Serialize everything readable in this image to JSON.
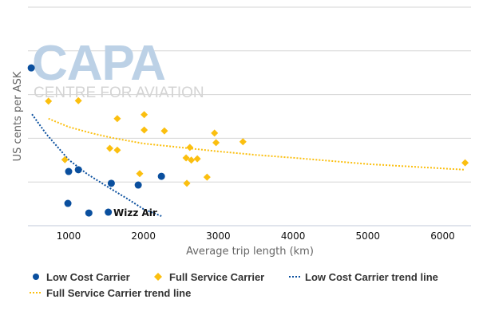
{
  "watermark": {
    "logo": "CAPA",
    "subtitle": "CENTRE FOR AVIATION"
  },
  "chart_data": {
    "type": "scatter",
    "xlabel": "Average trip length (km)",
    "ylabel": "US cents per ASK",
    "xlim": [
      500,
      6300
    ],
    "xticks": [
      "1000",
      "2000",
      "3000",
      "4000",
      "5000",
      "6000"
    ],
    "ylim": [
      0,
      5
    ],
    "yticks_shown": false,
    "grid": true,
    "legend_position": "bottom",
    "colors": {
      "lcc": "#0a4f9e",
      "fsc": "#fbbf0f",
      "grid": "#d6d6d6"
    },
    "series": [
      {
        "name": "Low Cost Carrier",
        "marker": "circle",
        "color": "#0a4f9e",
        "points": [
          [
            500,
            3.61
          ],
          [
            1000,
            1.24
          ],
          [
            1130,
            1.28
          ],
          [
            990,
            0.51
          ],
          [
            1270,
            0.29
          ],
          [
            1530,
            0.31
          ],
          [
            1570,
            0.97
          ],
          [
            1930,
            0.93
          ],
          [
            2240,
            1.13
          ]
        ]
      },
      {
        "name": "Full Service Carrier",
        "marker": "diamond",
        "color": "#fbbf0f",
        "points": [
          [
            730,
            2.85
          ],
          [
            1130,
            2.86
          ],
          [
            950,
            1.51
          ],
          [
            1650,
            2.45
          ],
          [
            1550,
            1.77
          ],
          [
            1650,
            1.73
          ],
          [
            2010,
            2.54
          ],
          [
            2010,
            2.19
          ],
          [
            2280,
            2.17
          ],
          [
            1950,
            1.19
          ],
          [
            2950,
            2.12
          ],
          [
            2970,
            1.9
          ],
          [
            3330,
            1.92
          ],
          [
            2620,
            1.79
          ],
          [
            2570,
            1.55
          ],
          [
            2640,
            1.5
          ],
          [
            2720,
            1.53
          ],
          [
            2580,
            0.97
          ],
          [
            2850,
            1.11
          ],
          [
            6300,
            1.44
          ]
        ]
      },
      {
        "name": "Low Cost Carrier trend line",
        "marker": "dotted-line",
        "color": "#0a4f9e",
        "points": [
          [
            510,
            2.55
          ],
          [
            700,
            2.1
          ],
          [
            1000,
            1.51
          ],
          [
            1250,
            1.18
          ],
          [
            1530,
            0.88
          ],
          [
            1800,
            0.6
          ],
          [
            2000,
            0.38
          ],
          [
            2240,
            0.22
          ]
        ]
      },
      {
        "name": "Full Service Carrier trend line",
        "marker": "dotted-line",
        "color": "#fbbf0f",
        "points": [
          [
            730,
            2.45
          ],
          [
            1000,
            2.26
          ],
          [
            1300,
            2.12
          ],
          [
            1580,
            2.01
          ],
          [
            2000,
            1.88
          ],
          [
            2500,
            1.79
          ],
          [
            3000,
            1.7
          ],
          [
            3500,
            1.62
          ],
          [
            4030,
            1.55
          ],
          [
            5000,
            1.41
          ],
          [
            6300,
            1.28
          ]
        ]
      }
    ],
    "annotations": [
      {
        "text": "Wizz Air",
        "x": 1530,
        "y": 0.31
      }
    ]
  }
}
